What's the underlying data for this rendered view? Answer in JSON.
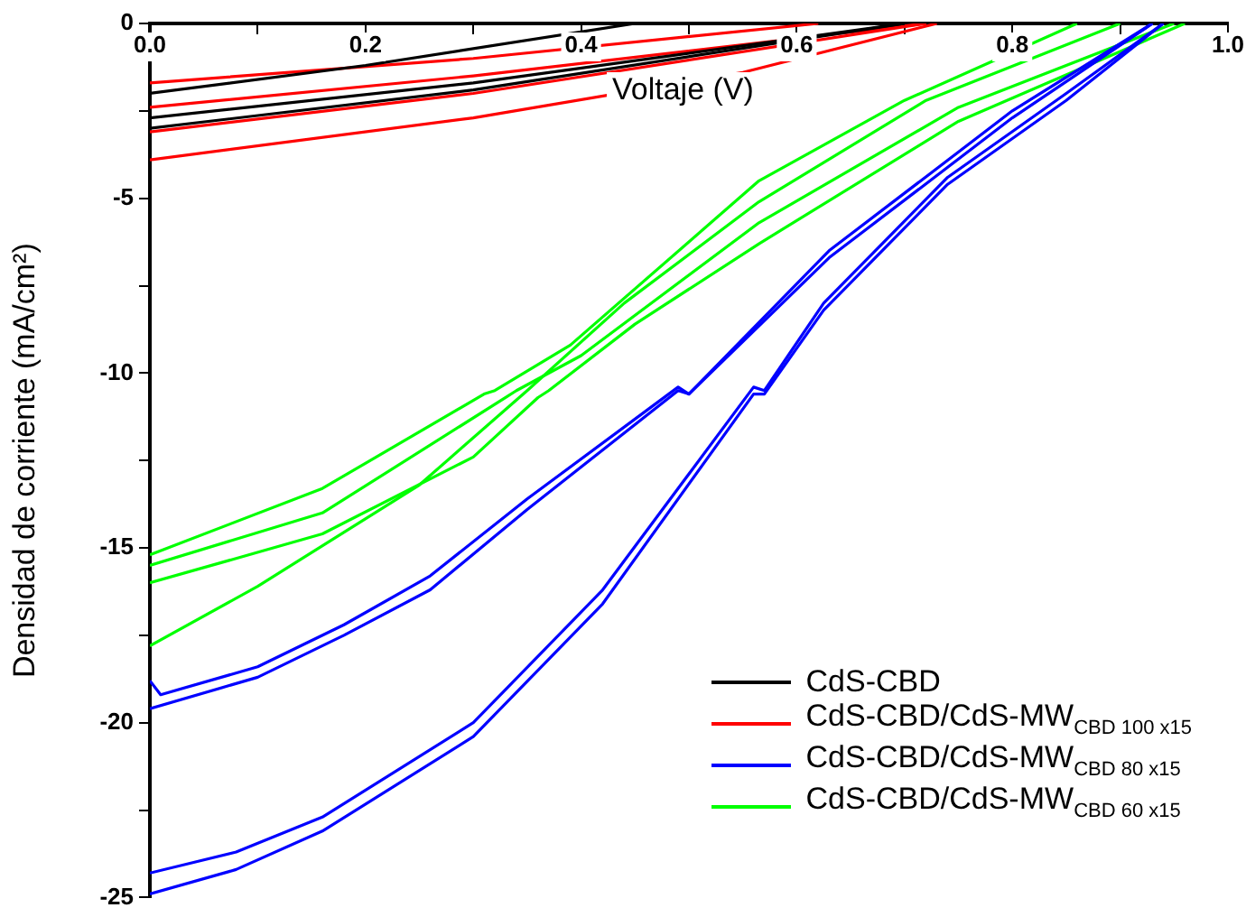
{
  "chart_data": {
    "type": "line",
    "xlabel": "Voltaje (V)",
    "ylabel": "Densidad de corriente (mA/cm²)",
    "xlim": [
      0,
      1
    ],
    "ylim": [
      -25,
      0
    ],
    "xticks": [
      {
        "value": 0,
        "label": "0.0"
      },
      {
        "value": 0.1,
        "label": null
      },
      0.2,
      {
        "value": 0.3,
        "label": null
      },
      0.4,
      {
        "value": 0.5,
        "label": null
      },
      0.6,
      {
        "value": 0.7,
        "label": null
      },
      0.8,
      {
        "value": 0.9,
        "label": null
      },
      {
        "value": 1,
        "label": "1.0"
      }
    ],
    "yticks": [
      -25,
      {
        "value": -22.5,
        "label": null
      },
      -20,
      {
        "value": -17.5,
        "label": null
      },
      -15,
      {
        "value": -12.5,
        "label": null
      },
      -10,
      {
        "value": -7.5,
        "label": null
      },
      -5,
      {
        "value": -2.5,
        "label": null
      },
      0
    ],
    "legend": "bottom right",
    "marker": "none",
    "line_style": "solid",
    "series": [
      {
        "name": "CdS-CBD",
        "color": "#000000",
        "x": [
          0,
          0.2,
          0.45
        ],
        "values": [
          -2.0,
          -1.2,
          0
        ]
      },
      {
        "color": "#000000",
        "x": [
          0,
          0.3,
          0.7
        ],
        "values": [
          -2.7,
          -1.7,
          0
        ]
      },
      {
        "color": "#000000",
        "x": [
          0,
          0.3,
          0.7
        ],
        "values": [
          -3.0,
          -1.9,
          0
        ]
      },
      {
        "name": "CdS-CBD/CdS-MW$_{CBD 100 x15}$",
        "color": "#ff0000",
        "x": [
          0,
          0.3,
          0.62
        ],
        "values": [
          -1.7,
          -1.0,
          0
        ]
      },
      {
        "color": "#ff0000",
        "x": [
          0,
          0.3,
          0.72
        ],
        "values": [
          -2.4,
          -1.5,
          0
        ]
      },
      {
        "color": "#ff0000",
        "x": [
          0,
          0.3,
          0.72
        ],
        "values": [
          -3.1,
          -2.0,
          0
        ]
      },
      {
        "color": "#ff0000",
        "x": [
          0,
          0.3,
          0.55,
          0.73
        ],
        "values": [
          -3.9,
          -2.7,
          -1.4,
          0
        ]
      },
      {
        "name": "CdS-CBD/CdS-MW$_{CBD 80 x15}$",
        "color": "#0000ff",
        "x": [
          0,
          0.01,
          0.1,
          0.18,
          0.26,
          0.35,
          0.49,
          0.5,
          0.63,
          0.8,
          0.93
        ],
        "values": [
          -18.8,
          -19.2,
          -18.4,
          -17.2,
          -15.8,
          -13.6,
          -10.4,
          -10.6,
          -6.5,
          -2.5,
          0
        ]
      },
      {
        "color": "#0000ff",
        "x": [
          0,
          0.1,
          0.18,
          0.26,
          0.35,
          0.49,
          0.5,
          0.63,
          0.8,
          0.93
        ],
        "values": [
          -19.6,
          -18.7,
          -17.5,
          -16.2,
          -13.9,
          -10.5,
          -10.6,
          -6.7,
          -2.7,
          0
        ]
      },
      {
        "color": "#0000ff",
        "x": [
          0,
          0.08,
          0.16,
          0.3,
          0.42,
          0.56,
          0.57,
          0.625,
          0.74,
          0.85,
          0.94
        ],
        "values": [
          -24.3,
          -23.7,
          -22.7,
          -20.0,
          -16.2,
          -10.4,
          -10.5,
          -8.0,
          -4.4,
          -2.0,
          0
        ]
      },
      {
        "color": "#0000ff",
        "x": [
          0,
          0.08,
          0.16,
          0.3,
          0.42,
          0.56,
          0.57,
          0.625,
          0.74,
          0.85,
          0.94
        ],
        "values": [
          -24.9,
          -24.2,
          -23.1,
          -20.4,
          -16.6,
          -10.6,
          -10.6,
          -8.2,
          -4.6,
          -2.2,
          0
        ]
      },
      {
        "name": "CdS-CBD/CdS-MW$_{CBD 60 x15}$",
        "color": "#00ff00",
        "x": [
          0,
          0.16,
          0.31,
          0.32,
          0.39,
          0.565,
          0.7,
          0.86
        ],
        "values": [
          -15.2,
          -13.3,
          -10.6,
          -10.5,
          -9.2,
          -4.5,
          -2.2,
          0
        ]
      },
      {
        "color": "#00ff00",
        "x": [
          0,
          0.16,
          0.33,
          0.34,
          0.4,
          0.565,
          0.75,
          0.95
        ],
        "values": [
          -15.5,
          -14.0,
          -10.7,
          -10.5,
          -9.5,
          -5.7,
          -2.4,
          0
        ]
      },
      {
        "color": "#00ff00",
        "x": [
          0,
          0.16,
          0.3,
          0.36,
          0.37,
          0.45,
          0.565,
          0.75,
          0.96
        ],
        "values": [
          -16.0,
          -14.6,
          -12.4,
          -10.7,
          -10.5,
          -8.6,
          -6.3,
          -2.8,
          0
        ]
      },
      {
        "color": "#00ff00",
        "x": [
          0,
          0.1,
          0.25,
          0.35,
          0.44,
          0.565,
          0.72,
          0.9
        ],
        "values": [
          -17.8,
          -16.1,
          -13.2,
          -10.5,
          -8.0,
          -5.1,
          -2.2,
          0
        ]
      }
    ]
  }
}
